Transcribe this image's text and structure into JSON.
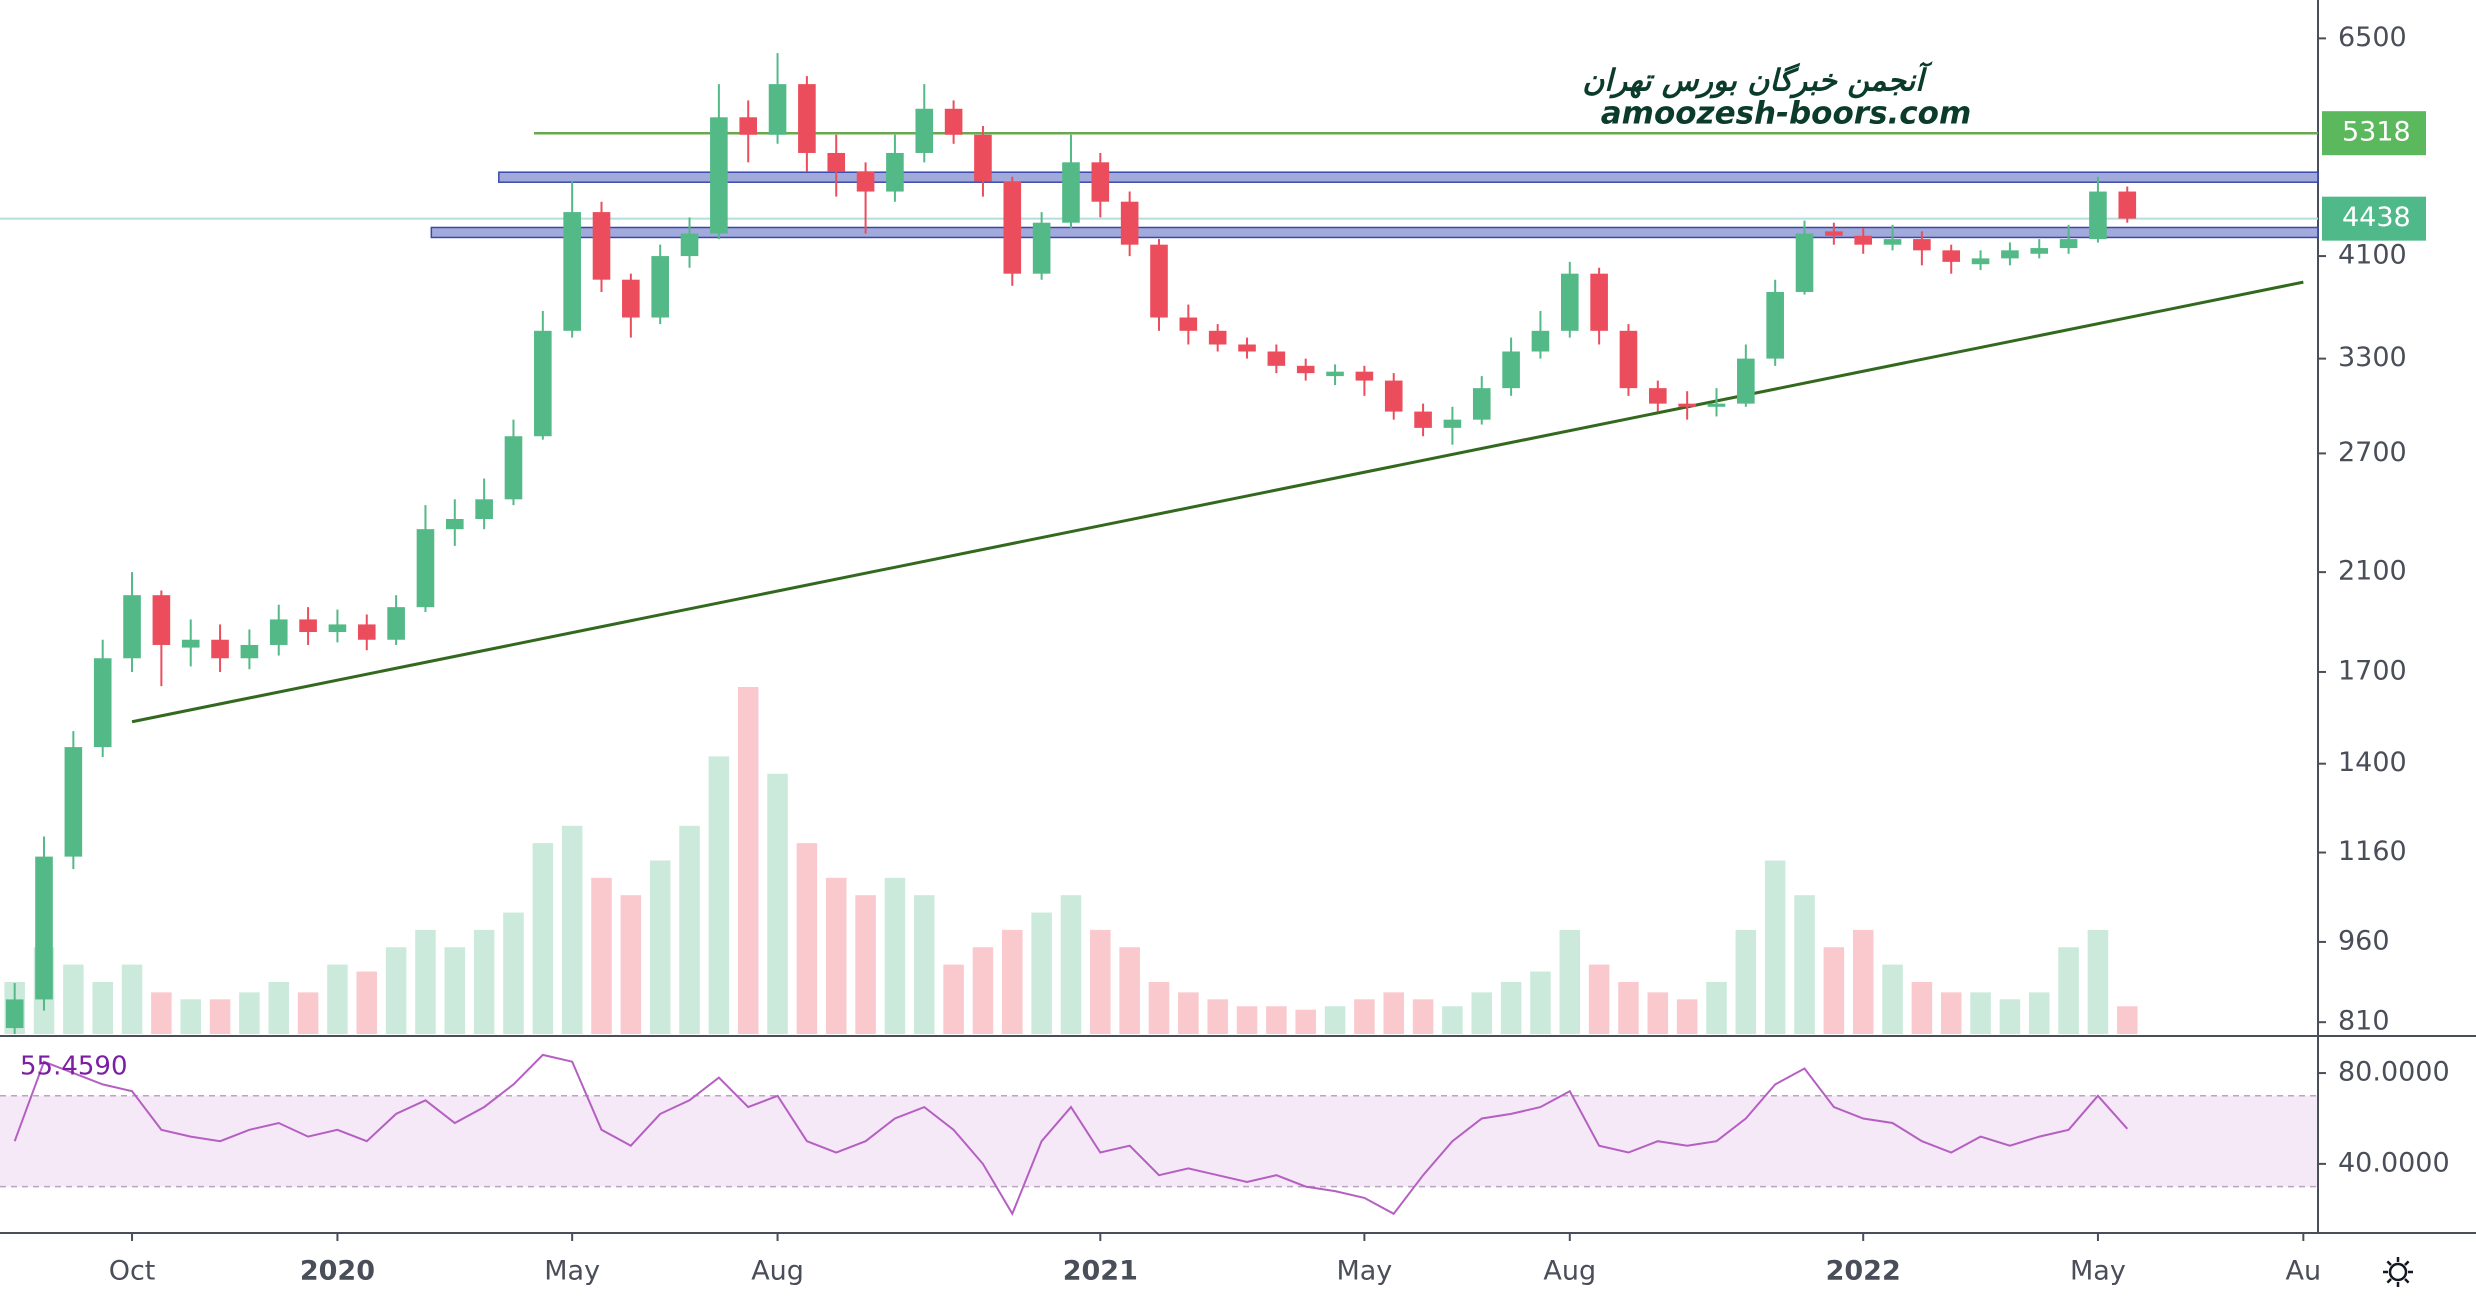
{
  "chart_data": {
    "type": "candlestick",
    "log_scale": true,
    "ylim": [
      790,
      7050
    ],
    "yticks": [
      6500,
      4100,
      3300,
      2700,
      2100,
      1700,
      1400,
      1160,
      960,
      810
    ],
    "grid": false,
    "up_color": "#53b987",
    "down_color": "#eb4d5c",
    "categories": [
      null,
      null,
      null,
      null,
      "Oct",
      null,
      null,
      null,
      null,
      null,
      null,
      "2020",
      null,
      null,
      null,
      null,
      null,
      null,
      null,
      "May",
      null,
      null,
      null,
      null,
      null,
      null,
      "Aug",
      null,
      null,
      null,
      null,
      null,
      null,
      null,
      null,
      null,
      null,
      "2021",
      null,
      null,
      null,
      null,
      null,
      null,
      null,
      null,
      "May",
      null,
      null,
      null,
      null,
      null,
      null,
      "Aug",
      null,
      null,
      null,
      null,
      null,
      null,
      null,
      null,
      null,
      "2022",
      null,
      null,
      null,
      null,
      null,
      null,
      null,
      "May",
      null,
      null,
      null,
      null,
      null,
      null,
      "Au"
    ],
    "ohlc": [
      [
        800,
        880,
        790,
        850
      ],
      [
        850,
        1200,
        830,
        1150
      ],
      [
        1150,
        1500,
        1120,
        1450
      ],
      [
        1450,
        1820,
        1420,
        1750
      ],
      [
        1750,
        2100,
        1700,
        2000
      ],
      [
        2000,
        2020,
        1650,
        1800
      ],
      [
        1790,
        1900,
        1720,
        1820
      ],
      [
        1820,
        1880,
        1700,
        1750
      ],
      [
        1750,
        1860,
        1710,
        1800
      ],
      [
        1800,
        1960,
        1760,
        1900
      ],
      [
        1900,
        1950,
        1800,
        1850
      ],
      [
        1850,
        1940,
        1810,
        1880
      ],
      [
        1880,
        1920,
        1780,
        1820
      ],
      [
        1820,
        2000,
        1800,
        1950
      ],
      [
        1950,
        2420,
        1930,
        2300
      ],
      [
        2300,
        2450,
        2220,
        2350
      ],
      [
        2350,
        2560,
        2300,
        2450
      ],
      [
        2450,
        2900,
        2420,
        2800
      ],
      [
        2800,
        3650,
        2780,
        3500
      ],
      [
        3500,
        4800,
        3450,
        4500
      ],
      [
        4500,
        4600,
        3800,
        3900
      ],
      [
        3900,
        3950,
        3450,
        3600
      ],
      [
        3600,
        4200,
        3550,
        4100
      ],
      [
        4100,
        4450,
        4000,
        4300
      ],
      [
        4300,
        5900,
        4250,
        5500
      ],
      [
        5500,
        5700,
        5000,
        5300
      ],
      [
        5300,
        6300,
        5200,
        5900
      ],
      [
        5900,
        6000,
        4900,
        5100
      ],
      [
        5100,
        5300,
        4650,
        4900
      ],
      [
        4900,
        5000,
        4300,
        4700
      ],
      [
        4700,
        5300,
        4600,
        5100
      ],
      [
        5100,
        5900,
        5000,
        5600
      ],
      [
        5600,
        5700,
        5200,
        5300
      ],
      [
        5300,
        5400,
        4650,
        4800
      ],
      [
        4800,
        4850,
        3850,
        3950
      ],
      [
        3950,
        4500,
        3900,
        4400
      ],
      [
        4400,
        5300,
        4350,
        5000
      ],
      [
        5000,
        5100,
        4450,
        4600
      ],
      [
        4600,
        4700,
        4100,
        4200
      ],
      [
        4200,
        4250,
        3500,
        3600
      ],
      [
        3600,
        3700,
        3400,
        3500
      ],
      [
        3500,
        3550,
        3350,
        3400
      ],
      [
        3400,
        3450,
        3300,
        3350
      ],
      [
        3350,
        3400,
        3200,
        3250
      ],
      [
        3250,
        3300,
        3150,
        3200
      ],
      [
        3180,
        3260,
        3120,
        3210
      ],
      [
        3210,
        3250,
        3050,
        3150
      ],
      [
        3150,
        3200,
        2900,
        2950
      ],
      [
        2950,
        3000,
        2800,
        2850
      ],
      [
        2850,
        2980,
        2750,
        2900
      ],
      [
        2900,
        3180,
        2870,
        3100
      ],
      [
        3100,
        3450,
        3050,
        3350
      ],
      [
        3350,
        3650,
        3300,
        3500
      ],
      [
        3500,
        4050,
        3450,
        3950
      ],
      [
        3950,
        4000,
        3400,
        3500
      ],
      [
        3500,
        3550,
        3050,
        3100
      ],
      [
        3100,
        3150,
        2950,
        3000
      ],
      [
        3000,
        3080,
        2900,
        2980
      ],
      [
        2980,
        3100,
        2920,
        3000
      ],
      [
        3000,
        3400,
        2980,
        3300
      ],
      [
        3300,
        3900,
        3250,
        3800
      ],
      [
        3800,
        4420,
        3780,
        4300
      ],
      [
        4320,
        4400,
        4200,
        4280
      ],
      [
        4280,
        4350,
        4120,
        4200
      ],
      [
        4200,
        4380,
        4150,
        4250
      ],
      [
        4250,
        4320,
        4020,
        4150
      ],
      [
        4150,
        4200,
        3950,
        4050
      ],
      [
        4030,
        4150,
        3980,
        4080
      ],
      [
        4080,
        4220,
        4020,
        4150
      ],
      [
        4120,
        4250,
        4080,
        4170
      ],
      [
        4170,
        4380,
        4120,
        4250
      ],
      [
        4250,
        4850,
        4220,
        4700
      ],
      [
        4700,
        4750,
        4400,
        4438
      ],
      null,
      null,
      null,
      null,
      null,
      null
    ],
    "volume": [
      15,
      25,
      20,
      15,
      20,
      12,
      10,
      10,
      12,
      15,
      12,
      20,
      18,
      25,
      30,
      25,
      30,
      35,
      55,
      60,
      45,
      40,
      50,
      60,
      80,
      100,
      75,
      55,
      45,
      40,
      45,
      40,
      20,
      25,
      30,
      35,
      40,
      30,
      25,
      15,
      12,
      10,
      8,
      8,
      7,
      8,
      10,
      12,
      10,
      8,
      12,
      15,
      18,
      30,
      20,
      15,
      12,
      10,
      15,
      30,
      50,
      40,
      25,
      30,
      20,
      15,
      12,
      12,
      10,
      12,
      25,
      30,
      8,
      null,
      null,
      null,
      null,
      null,
      null
    ],
    "levels": [
      {
        "value": 5318,
        "from": 17.7,
        "color": "#6aa84f"
      }
    ],
    "bands": [
      {
        "value": 4845,
        "from": 16.5,
        "color": "#7986cb"
      },
      {
        "value": 4310,
        "from": 14.2,
        "color": "#7986cb"
      }
    ],
    "last_price": {
      "value": 4438,
      "color": "#b2dfdb"
    },
    "price_labels": [
      {
        "value": 5318,
        "color": "#5cb85c"
      },
      {
        "value": 4438,
        "color": "#4fb98a"
      }
    ],
    "trend_line": {
      "x": [
        4,
        78
      ],
      "y": [
        1530,
        3880
      ],
      "color": "#33691e"
    },
    "watermark": {
      "line1": "آنجمن خبرگان بورس تهران",
      "line2": "amoozesh-boors.com"
    },
    "rsi": {
      "values": [
        50,
        85,
        80,
        75,
        72,
        55,
        52,
        50,
        55,
        58,
        52,
        55,
        50,
        62,
        68,
        58,
        65,
        75,
        88,
        85,
        55,
        48,
        62,
        68,
        78,
        65,
        70,
        50,
        45,
        50,
        60,
        65,
        55,
        40,
        18,
        50,
        65,
        45,
        48,
        35,
        38,
        35,
        32,
        35,
        30,
        28,
        25,
        18,
        35,
        50,
        60,
        62,
        65,
        72,
        48,
        45,
        50,
        48,
        50,
        60,
        75,
        82,
        65,
        60,
        58,
        50,
        45,
        52,
        48,
        52,
        55,
        70,
        55.459,
        null,
        null,
        null,
        null,
        null,
        null
      ],
      "color": "#b55fc2",
      "ylim": [
        10,
        95
      ],
      "yticks": [
        {
          "value": 80,
          "label": "80.0000"
        },
        {
          "value": 40,
          "label": "40.0000"
        }
      ],
      "band": [
        30,
        70
      ],
      "current_label": "55.4590"
    }
  }
}
